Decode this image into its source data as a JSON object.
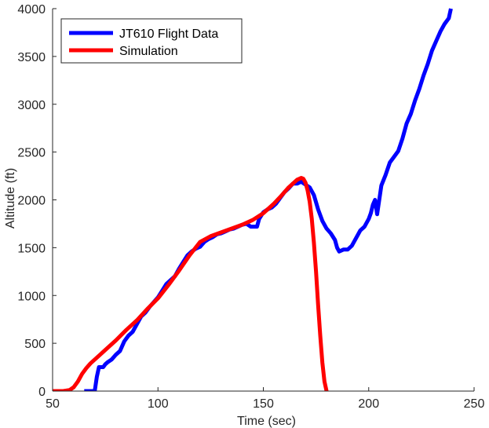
{
  "chart_data": {
    "type": "line",
    "title": "",
    "xlabel": "Time (sec)",
    "ylabel": "Altitude (ft)",
    "xlim": [
      50,
      250
    ],
    "ylim": [
      0,
      4000
    ],
    "xticks": [
      50,
      100,
      150,
      200,
      250
    ],
    "yticks": [
      0,
      500,
      1000,
      1500,
      2000,
      2500,
      3000,
      3500,
      4000
    ],
    "grid": false,
    "legend_position": "top-left",
    "series": [
      {
        "name": "JT610 Flight Data",
        "color": "#0000ff",
        "x": [
          65,
          70,
          71,
          72,
          74,
          75,
          76,
          78,
          80,
          82,
          84,
          86,
          88,
          90,
          92,
          94,
          96,
          98,
          100,
          102,
          104,
          106,
          108,
          110,
          112,
          114,
          116,
          118,
          120,
          122,
          124,
          126,
          128,
          130,
          132,
          134,
          136,
          138,
          140,
          142,
          144,
          146,
          147,
          148,
          150,
          152,
          154,
          156,
          158,
          160,
          162,
          164,
          166,
          168,
          170,
          172,
          174,
          176,
          178,
          180,
          182,
          184,
          185,
          186,
          188,
          190,
          192,
          194,
          196,
          198,
          200,
          201,
          202,
          203,
          204,
          206,
          208,
          210,
          212,
          214,
          216,
          218,
          220,
          222,
          224,
          226,
          228,
          230,
          232,
          234,
          236,
          238,
          239
        ],
        "y": [
          0,
          0,
          150,
          250,
          250,
          280,
          300,
          330,
          380,
          420,
          520,
          580,
          620,
          700,
          780,
          820,
          880,
          930,
          980,
          1050,
          1120,
          1160,
          1200,
          1280,
          1350,
          1420,
          1460,
          1490,
          1510,
          1560,
          1590,
          1610,
          1640,
          1650,
          1670,
          1690,
          1700,
          1720,
          1740,
          1750,
          1720,
          1720,
          1720,
          1800,
          1870,
          1900,
          1920,
          1960,
          2020,
          2080,
          2120,
          2170,
          2170,
          2190,
          2160,
          2130,
          2050,
          1900,
          1780,
          1700,
          1650,
          1580,
          1500,
          1460,
          1480,
          1480,
          1520,
          1600,
          1680,
          1720,
          1800,
          1860,
          1950,
          2000,
          1850,
          2150,
          2260,
          2390,
          2450,
          2510,
          2640,
          2800,
          2900,
          3040,
          3160,
          3300,
          3420,
          3560,
          3660,
          3760,
          3840,
          3900,
          4000
        ]
      },
      {
        "name": "Simulation",
        "color": "#ff0000",
        "x": [
          50,
          55,
          58,
          60,
          62,
          64,
          66,
          68,
          70,
          75,
          80,
          85,
          90,
          95,
          100,
          105,
          110,
          115,
          120,
          125,
          130,
          135,
          140,
          145,
          150,
          155,
          158,
          160,
          162,
          164,
          166,
          168,
          169,
          170,
          171,
          172,
          173,
          174,
          175,
          176,
          177,
          178,
          179,
          180
        ],
        "y": [
          0,
          0,
          10,
          40,
          100,
          180,
          240,
          290,
          330,
          430,
          530,
          640,
          740,
          860,
          970,
          1110,
          1260,
          1420,
          1560,
          1620,
          1660,
          1700,
          1740,
          1790,
          1860,
          1960,
          2030,
          2080,
          2130,
          2170,
          2210,
          2230,
          2220,
          2180,
          2100,
          1980,
          1800,
          1550,
          1250,
          900,
          580,
          300,
          100,
          0
        ]
      }
    ]
  }
}
